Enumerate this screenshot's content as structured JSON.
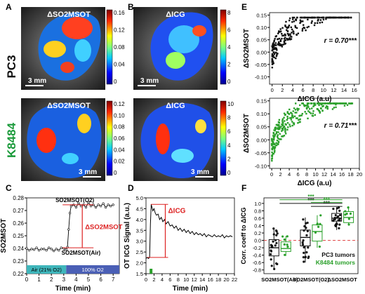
{
  "panels": {
    "A": "A",
    "B": "B",
    "C": "C",
    "D": "D",
    "E": "E",
    "F": "F"
  },
  "row_labels": {
    "pc3": "PC3",
    "k8484": "K8484"
  },
  "row_label_colors": {
    "pc3": "#111111",
    "k8484": "#1a9a3a"
  },
  "images": {
    "a_top_title": "ΔSO2MSOT",
    "b_top_title": "ΔICG",
    "a_bottom_title": "ΔSO2MSOT",
    "b_bottom_title": "ΔICG",
    "scalebar": "3 mm"
  },
  "colorbars": {
    "a_top_ticks": [
      "0.16",
      "0.12",
      "0.08",
      "0.04",
      "0"
    ],
    "b_top_ticks": [
      "8",
      "6",
      "4",
      "2",
      "0"
    ],
    "a_bottom_ticks": [
      "0.12",
      "0.10",
      "0.08",
      "0.06",
      "0.04",
      "0.02",
      "0"
    ],
    "b_bottom_ticks": [
      "10",
      "8",
      "6",
      "4",
      "2",
      "0"
    ]
  },
  "chart_data": [
    {
      "id": "C",
      "type": "line",
      "xlabel": "Time (min)",
      "ylabel": "SO2MSOT",
      "xlim": [
        0,
        7.5
      ],
      "ylim": [
        0.22,
        0.28
      ],
      "xticks": [
        "0",
        "1",
        "2",
        "3",
        "4",
        "5",
        "6",
        "7"
      ],
      "yticks": [
        "0.22",
        "0.23",
        "0.24",
        "0.25",
        "0.26",
        "0.27",
        "0.28"
      ],
      "x": [
        0,
        0.2,
        0.4,
        0.6,
        0.8,
        1.0,
        1.2,
        1.4,
        1.6,
        1.8,
        2.0,
        2.2,
        2.4,
        2.6,
        2.8,
        3.0,
        3.1,
        3.2,
        3.3,
        3.4,
        3.5,
        3.6,
        3.8,
        4.0,
        4.2,
        4.4,
        4.6,
        4.8,
        5.0,
        5.2,
        5.4,
        5.6,
        5.8,
        6.0,
        6.2,
        6.4,
        6.6,
        6.8,
        7.0
      ],
      "y": [
        0.24,
        0.2385,
        0.2395,
        0.239,
        0.2405,
        0.2385,
        0.2395,
        0.2395,
        0.2385,
        0.2405,
        0.2395,
        0.238,
        0.2395,
        0.2385,
        0.2405,
        0.24,
        0.2392,
        0.239,
        0.241,
        0.255,
        0.268,
        0.2735,
        0.2745,
        0.2725,
        0.276,
        0.2735,
        0.2745,
        0.2725,
        0.2765,
        0.2735,
        0.2745,
        0.2725,
        0.2745,
        0.2735,
        0.2755,
        0.2725,
        0.2745,
        0.2735,
        0.2745
      ],
      "annotations": {
        "o2": "SO2MSOT(O2)",
        "air": "SO2MSOT(Air)",
        "delta": "ΔSO2MSOT"
      },
      "bands": [
        {
          "label": "Air (21% O2)",
          "from": 0,
          "to": 3.2,
          "color": "#3fb6bb"
        },
        {
          "label": "100% O2",
          "from": 3.2,
          "to": 7.5,
          "color": "#4a5fb5"
        }
      ]
    },
    {
      "id": "D",
      "type": "line",
      "xlabel": "Time (min)",
      "ylabel": "OT ICG Signal (a.u.)",
      "xlim": [
        0,
        22
      ],
      "ylim": [
        1.5,
        5.0
      ],
      "xticks": [
        "0",
        "2",
        "4",
        "6",
        "8",
        "10",
        "12",
        "14",
        "16",
        "18",
        "20",
        "22"
      ],
      "yticks": [
        "1.5",
        "2.0",
        "2.5",
        "3.0",
        "3.5",
        "4.0",
        "4.5",
        "5.0"
      ],
      "x": [
        0,
        0.3,
        0.6,
        0.9,
        1.1,
        1.3,
        1.5,
        1.7,
        2.0,
        2.3,
        2.6,
        3.0,
        3.4,
        3.8,
        4.2,
        4.6,
        5.0,
        5.5,
        6.0,
        6.5,
        7.0,
        7.5,
        8.0,
        8.5,
        9.0,
        9.5,
        10,
        10.5,
        11,
        11.5,
        12,
        12.5,
        13,
        13.5,
        14,
        14.5,
        15,
        15.5,
        16,
        16.5,
        17,
        17.5,
        18,
        18.5,
        19,
        19.5,
        20,
        20.5,
        21,
        21.5
      ],
      "y": [
        2.2,
        2.25,
        2.2,
        2.25,
        3.8,
        4.7,
        4.55,
        4.4,
        4.5,
        4.3,
        4.2,
        4.25,
        4.0,
        4.1,
        3.9,
        4.0,
        3.8,
        3.9,
        3.7,
        3.75,
        3.6,
        3.7,
        3.5,
        3.6,
        3.45,
        3.55,
        3.4,
        3.5,
        3.35,
        3.45,
        3.3,
        3.4,
        3.3,
        3.35,
        3.25,
        3.35,
        3.2,
        3.3,
        3.25,
        3.2,
        3.3,
        3.2,
        3.25,
        3.2,
        3.3,
        3.15,
        3.25,
        3.2,
        3.25,
        3.2
      ],
      "annotation": "ΔICG",
      "marker_color": "#2aa02a"
    },
    {
      "id": "E_top",
      "type": "scatter",
      "xlabel": "ΔICG (a.u)",
      "ylabel": "ΔSO2MSOT",
      "xlim": [
        -0.5,
        17
      ],
      "ylim": [
        -0.13,
        0.16
      ],
      "xticks": [
        "0",
        "2",
        "4",
        "6",
        "8",
        "10",
        "12",
        "14",
        "16"
      ],
      "yticks": [
        "-0.10",
        "-0.05",
        "0.00",
        "0.05",
        "0.10",
        "0.15"
      ],
      "stat": "r = 0.70***",
      "color": "#111111"
    },
    {
      "id": "E_bottom",
      "type": "scatter",
      "xlabel": "ΔICG (a.u)",
      "ylabel": "ΔSO2MSOT",
      "xlim": [
        -0.5,
        20
      ],
      "ylim": [
        -0.11,
        0.16
      ],
      "xticks": [
        "0",
        "2",
        "4",
        "6",
        "8",
        "10",
        "12",
        "14",
        "16",
        "18",
        "20"
      ],
      "yticks": [
        "-0.10",
        "-0.05",
        "0.00",
        "0.05",
        "0.10",
        "0.15"
      ],
      "stat": "r = 0.71***",
      "color": "#2aa02a"
    },
    {
      "id": "F",
      "type": "box",
      "ylabel": "Corr. coeff to ΔICG",
      "ylim": [
        -0.9,
        1.15
      ],
      "yticks": [
        "-0.8",
        "-0.6",
        "-0.4",
        "-0.2",
        "0.0",
        "0.2",
        "0.4",
        "0.6",
        "0.8",
        "1.0"
      ],
      "categories": [
        "SO2MSOT(Air)",
        "SO2MSOT(O2)",
        "ΔSO2MSOT"
      ],
      "series": [
        {
          "name": "PC3 tumors",
          "color": "#111111",
          "boxes": [
            {
              "q1": -0.42,
              "med": -0.2,
              "q3": 0.02,
              "lo": -0.8,
              "hi": 0.33
            },
            {
              "q1": -0.15,
              "med": 0.08,
              "q3": 0.28,
              "lo": -0.6,
              "hi": 0.62
            },
            {
              "q1": 0.52,
              "med": 0.6,
              "q3": 0.73,
              "lo": 0.28,
              "hi": 0.9
            }
          ]
        },
        {
          "name": "K8484 tumors",
          "color": "#2aa02a",
          "boxes": [
            {
              "q1": -0.3,
              "med": -0.22,
              "q3": -0.04,
              "lo": -0.42,
              "hi": 0.12
            },
            {
              "q1": -0.02,
              "med": 0.24,
              "q3": 0.42,
              "lo": -0.2,
              "hi": 0.68
            },
            {
              "q1": 0.48,
              "med": 0.62,
              "q3": 0.78,
              "lo": 0.4,
              "hi": 0.92
            }
          ]
        }
      ],
      "sig": [
        "***",
        "***",
        "***",
        "***"
      ],
      "legend": [
        "PC3 tumors",
        "K8484 tumors"
      ]
    }
  ]
}
